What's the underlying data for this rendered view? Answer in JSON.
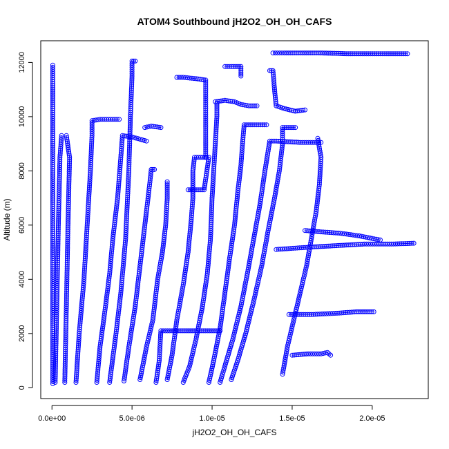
{
  "chart_data": {
    "type": "scatter",
    "title": "ATOM4 Southbound jH2O2_OH_OH_CAFS",
    "xlabel": "jH2O2_OH_OH_CAFS",
    "ylabel": "Altitude (m)",
    "xlim": [
      -7e-07,
      2.35e-05
    ],
    "ylim": [
      -400,
      12800
    ],
    "x_ticks": [
      {
        "value": 0,
        "label": "0.0e+00"
      },
      {
        "value": 5e-06,
        "label": "5.0e-06"
      },
      {
        "value": 1e-05,
        "label": "1.0e-05"
      },
      {
        "value": 1.5e-05,
        "label": "1.5e-05"
      },
      {
        "value": 2e-05,
        "label": "2.0e-05"
      }
    ],
    "y_ticks": [
      {
        "value": 0,
        "label": "0"
      },
      {
        "value": 2000,
        "label": "2000"
      },
      {
        "value": 4000,
        "label": "4000"
      },
      {
        "value": 6000,
        "label": "6000"
      },
      {
        "value": 8000,
        "label": "8000"
      },
      {
        "value": 10000,
        "label": "10000"
      },
      {
        "value": 12000,
        "label": "12000"
      }
    ],
    "grid": false,
    "marker": "open-circle",
    "line_style": "points-and-lines",
    "series_color": "#0000ff",
    "series": [
      {
        "values": [
          [
            5e-08,
            150
          ],
          [
            5e-08,
            2000
          ],
          [
            5e-08,
            4000
          ],
          [
            5e-08,
            6000
          ],
          [
            5e-08,
            8000
          ],
          [
            5e-08,
            10000
          ],
          [
            5e-08,
            11900
          ]
        ]
      },
      {
        "values": [
          [
            2e-07,
            200
          ],
          [
            3e-07,
            3000
          ],
          [
            4e-07,
            6000
          ],
          [
            5e-07,
            8500
          ],
          [
            6e-07,
            9300
          ]
        ]
      },
      {
        "values": [
          [
            8e-07,
            200
          ],
          [
            9e-07,
            3000
          ],
          [
            1e-06,
            6000
          ],
          [
            1.1e-06,
            8500
          ],
          [
            9e-07,
            9300
          ]
        ]
      },
      {
        "values": [
          [
            1.5e-06,
            200
          ],
          [
            1.7e-06,
            2000
          ],
          [
            2e-06,
            4000
          ],
          [
            2.2e-06,
            6000
          ],
          [
            2.4e-06,
            8000
          ],
          [
            2.5e-06,
            9300
          ],
          [
            2.5e-06,
            9850
          ],
          [
            3e-06,
            9900
          ],
          [
            4.2e-06,
            9900
          ]
        ]
      },
      {
        "values": [
          [
            2.8e-06,
            200
          ],
          [
            3e-06,
            1500
          ],
          [
            3.3e-06,
            2800
          ],
          [
            3.6e-06,
            4200
          ],
          [
            3.8e-06,
            5500
          ],
          [
            4.1e-06,
            7000
          ],
          [
            4.3e-06,
            8500
          ],
          [
            4.4e-06,
            9300
          ],
          [
            5e-06,
            9250
          ],
          [
            5.9e-06,
            9100
          ]
        ]
      },
      {
        "values": [
          [
            3.6e-06,
            200
          ],
          [
            4e-06,
            2000
          ],
          [
            4.3e-06,
            3500
          ],
          [
            4.6e-06,
            5500
          ],
          [
            4.8e-06,
            8000
          ],
          [
            4.9e-06,
            10000
          ],
          [
            5e-06,
            11500
          ],
          [
            5e-06,
            12050
          ],
          [
            5.2e-06,
            12050
          ]
        ]
      },
      {
        "values": [
          [
            4.5e-06,
            250
          ],
          [
            4.8e-06,
            1500
          ],
          [
            5.2e-06,
            3000
          ],
          [
            5.5e-06,
            4500
          ],
          [
            5.8e-06,
            6000
          ],
          [
            6.1e-06,
            7500
          ],
          [
            6.2e-06,
            8050
          ],
          [
            6.4e-06,
            8050
          ]
        ]
      },
      {
        "values": [
          [
            5.5e-06,
            300
          ],
          [
            5.9e-06,
            1500
          ],
          [
            6.3e-06,
            2500
          ],
          [
            6.6e-06,
            4000
          ],
          [
            6.9e-06,
            5000
          ],
          [
            7.1e-06,
            6000
          ],
          [
            7.2e-06,
            7000
          ],
          [
            7.2e-06,
            7600
          ]
        ]
      },
      {
        "values": [
          [
            5.8e-06,
            9600
          ],
          [
            6.2e-06,
            9650
          ],
          [
            6.8e-06,
            9600
          ]
        ]
      },
      {
        "values": [
          [
            6.5e-06,
            200
          ],
          [
            6.7e-06,
            1000
          ],
          [
            6.8e-06,
            2100
          ],
          [
            7.5e-06,
            2100
          ],
          [
            8e-06,
            2100
          ],
          [
            8.5e-06,
            2100
          ],
          [
            9e-06,
            2100
          ],
          [
            9.6e-06,
            2100
          ],
          [
            1.05e-05,
            2100
          ]
        ]
      },
      {
        "values": [
          [
            7.2e-06,
            300
          ],
          [
            7.5e-06,
            1200
          ],
          [
            7.8e-06,
            2500
          ],
          [
            8.2e-06,
            3800
          ],
          [
            8.5e-06,
            5000
          ],
          [
            8.7e-06,
            6200
          ],
          [
            8.8e-06,
            7000
          ],
          [
            8.8e-06,
            8000
          ],
          [
            8.9e-06,
            8500
          ],
          [
            9.8e-06,
            8500
          ],
          [
            9.5e-06,
            7300
          ],
          [
            8.5e-06,
            7300
          ]
        ]
      },
      {
        "values": [
          [
            7.8e-06,
            11450
          ],
          [
            8.2e-06,
            11450
          ],
          [
            9e-06,
            11400
          ],
          [
            9.6e-06,
            11350
          ],
          [
            9.6e-06,
            10000
          ],
          [
            9.6e-06,
            8500
          ]
        ]
      },
      {
        "values": [
          [
            8.2e-06,
            200
          ],
          [
            8.6e-06,
            800
          ],
          [
            9e-06,
            1800
          ],
          [
            9.4e-06,
            3000
          ],
          [
            9.7e-06,
            4200
          ],
          [
            9.9e-06,
            5500
          ],
          [
            1e-05,
            7000
          ],
          [
            1.01e-05,
            8000
          ],
          [
            1.02e-05,
            9000
          ],
          [
            1.03e-05,
            10000
          ],
          [
            1.03e-05,
            10500
          ]
        ]
      },
      {
        "values": [
          [
            9.8e-06,
            200
          ],
          [
            1.01e-05,
            1000
          ],
          [
            1.05e-05,
            2200
          ],
          [
            1.08e-05,
            3500
          ],
          [
            1.11e-05,
            4800
          ],
          [
            1.14e-05,
            6000
          ],
          [
            1.16e-05,
            7200
          ],
          [
            1.18e-05,
            8200
          ],
          [
            1.19e-05,
            9000
          ],
          [
            1.2e-05,
            9700
          ],
          [
            1.25e-05,
            9700
          ],
          [
            1.34e-05,
            9700
          ]
        ]
      },
      {
        "values": [
          [
            1.02e-05,
            10550
          ],
          [
            1.08e-05,
            10600
          ],
          [
            1.14e-05,
            10550
          ],
          [
            1.18e-05,
            10450
          ],
          [
            1.23e-05,
            10400
          ],
          [
            1.28e-05,
            10400
          ]
        ]
      },
      {
        "values": [
          [
            1.08e-05,
            11850
          ],
          [
            1.12e-05,
            11850
          ],
          [
            1.18e-05,
            11850
          ],
          [
            1.18e-05,
            11500
          ]
        ]
      },
      {
        "values": [
          [
            1.05e-05,
            200
          ],
          [
            1.08e-05,
            800
          ],
          [
            1.13e-05,
            1800
          ],
          [
            1.18e-05,
            3000
          ],
          [
            1.22e-05,
            4200
          ],
          [
            1.26e-05,
            5500
          ],
          [
            1.3e-05,
            6800
          ],
          [
            1.33e-05,
            8000
          ],
          [
            1.36e-05,
            9100
          ],
          [
            1.4e-05,
            9100
          ],
          [
            1.55e-05,
            9050
          ],
          [
            1.68e-05,
            9050
          ]
        ]
      },
      {
        "values": [
          [
            1.12e-05,
            300
          ],
          [
            1.16e-05,
            1000
          ],
          [
            1.21e-05,
            2000
          ],
          [
            1.26e-05,
            3200
          ],
          [
            1.31e-05,
            4500
          ],
          [
            1.35e-05,
            5800
          ],
          [
            1.39e-05,
            7000
          ],
          [
            1.42e-05,
            8000
          ],
          [
            1.44e-05,
            9000
          ],
          [
            1.44e-05,
            9600
          ],
          [
            1.52e-05,
            9600
          ]
        ]
      },
      {
        "values": [
          [
            1.36e-05,
            11700
          ],
          [
            1.38e-05,
            11700
          ],
          [
            1.39e-05,
            11000
          ],
          [
            1.4e-05,
            10400
          ],
          [
            1.45e-05,
            10300
          ],
          [
            1.52e-05,
            10200
          ],
          [
            1.58e-05,
            10250
          ]
        ]
      },
      {
        "values": [
          [
            1.38e-05,
            12350
          ],
          [
            1.45e-05,
            12350
          ],
          [
            1.55e-05,
            12350
          ],
          [
            1.65e-05,
            12350
          ],
          [
            1.75e-05,
            12340
          ],
          [
            1.85e-05,
            12320
          ],
          [
            1.95e-05,
            12320
          ],
          [
            2.22e-05,
            12320
          ]
        ]
      },
      {
        "values": [
          [
            1.44e-05,
            500
          ],
          [
            1.47e-05,
            1500
          ],
          [
            1.51e-05,
            2500
          ],
          [
            1.55e-05,
            3500
          ],
          [
            1.59e-05,
            4500
          ],
          [
            1.62e-05,
            5500
          ],
          [
            1.65e-05,
            6500
          ],
          [
            1.67e-05,
            7500
          ],
          [
            1.68e-05,
            8500
          ],
          [
            1.66e-05,
            9200
          ]
        ]
      },
      {
        "values": [
          [
            1.4e-05,
            5100
          ],
          [
            1.52e-05,
            5150
          ],
          [
            1.65e-05,
            5200
          ],
          [
            1.8e-05,
            5250
          ],
          [
            1.95e-05,
            5300
          ],
          [
            2.12e-05,
            5300
          ],
          [
            2.26e-05,
            5330
          ]
        ]
      },
      {
        "values": [
          [
            1.5e-05,
            1200
          ],
          [
            1.6e-05,
            1250
          ],
          [
            1.68e-05,
            1250
          ],
          [
            1.72e-05,
            1300
          ],
          [
            1.74e-05,
            1200
          ]
        ]
      },
      {
        "values": [
          [
            1.48e-05,
            2700
          ],
          [
            1.62e-05,
            2700
          ],
          [
            1.78e-05,
            2750
          ],
          [
            1.9e-05,
            2800
          ],
          [
            2.01e-05,
            2800
          ]
        ]
      },
      {
        "values": [
          [
            1.58e-05,
            5800
          ],
          [
            1.68e-05,
            5750
          ],
          [
            1.8e-05,
            5700
          ],
          [
            1.92e-05,
            5600
          ],
          [
            2.05e-05,
            5450
          ]
        ]
      }
    ]
  }
}
